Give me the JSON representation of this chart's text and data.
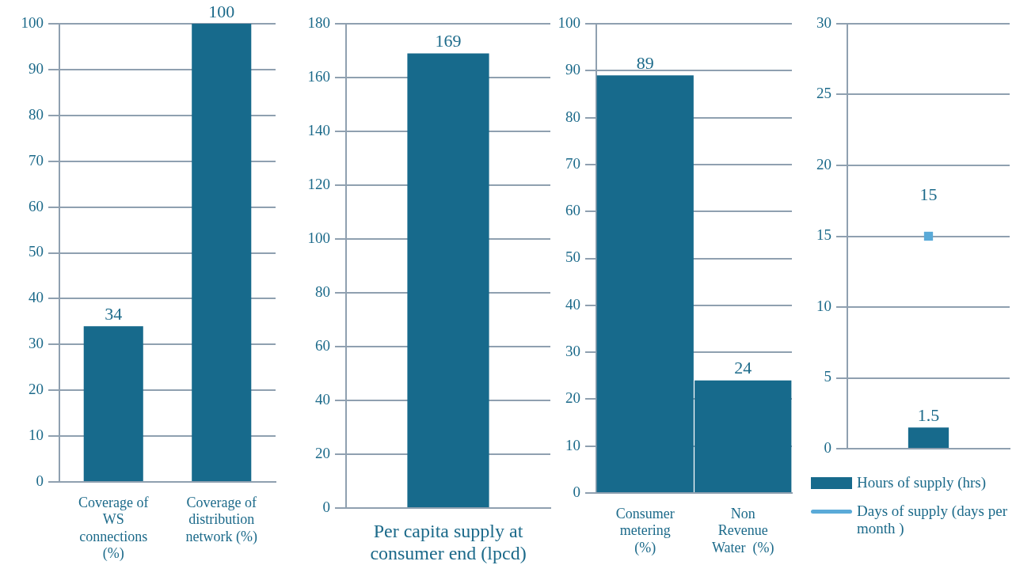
{
  "chart_data": [
    {
      "type": "bar",
      "categories": [
        "Coverage of WS connections (%)",
        "Coverage of distribution network (%)"
      ],
      "values": [
        34,
        100
      ],
      "color": "#176a8c",
      "ylim": [
        0,
        100
      ],
      "yticks": [
        0,
        10,
        20,
        30,
        40,
        50,
        60,
        70,
        80,
        90,
        100
      ],
      "grid": "y",
      "data_labels": true
    },
    {
      "type": "bar",
      "categories": [
        "Per capita supply at consumer end (lpcd)"
      ],
      "values": [
        169
      ],
      "color": "#176a8c",
      "ylim": [
        0,
        180
      ],
      "yticks": [
        0,
        20,
        40,
        60,
        80,
        100,
        120,
        140,
        160,
        180
      ],
      "grid": "y",
      "data_labels": true
    },
    {
      "type": "bar",
      "categories": [
        "Consumer metering (%)",
        "Non Revenue Water  (%)"
      ],
      "values": [
        89,
        24
      ],
      "color": "#176a8c",
      "ylim": [
        0,
        100
      ],
      "yticks": [
        0,
        10,
        20,
        30,
        40,
        50,
        60,
        70,
        80,
        90,
        100
      ],
      "grid": "y",
      "data_labels": true
    },
    {
      "type": "bar",
      "categories": [
        null
      ],
      "series": [
        {
          "name": "Hours of supply (hrs)",
          "type": "bar",
          "color": "#176a8c",
          "values": [
            1.5
          ]
        },
        {
          "name": "Days of supply (days per month )",
          "type": "line",
          "color": "#5aaad8",
          "values": [
            15
          ]
        }
      ],
      "ylim": [
        0,
        30
      ],
      "yticks": [
        0,
        5,
        10,
        15,
        20,
        25,
        30
      ],
      "grid": "y",
      "data_labels": true,
      "legend": "bottom",
      "marker": "square"
    }
  ]
}
